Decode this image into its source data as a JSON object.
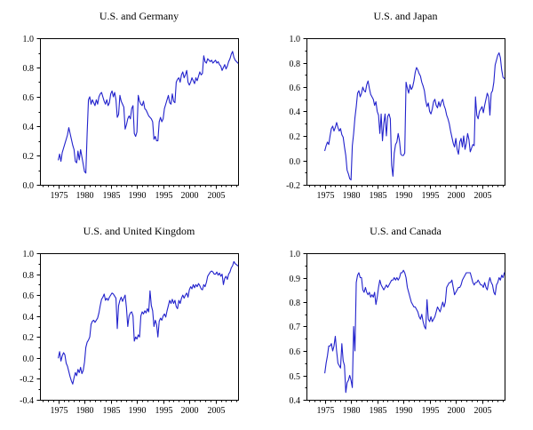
{
  "colors": {
    "line": "#2222cc",
    "frame": "#000000",
    "tick": "#000000",
    "background": "#ffffff",
    "text": "#000000"
  },
  "chart_data": [
    {
      "type": "line",
      "title": "U.S. and Germany",
      "xlabel": "",
      "ylabel": "",
      "legend": "none",
      "grid": "off",
      "ylim": [
        0.0,
        1.0
      ],
      "ytick_step": 0.2,
      "ytick_minor": 0.1,
      "xlim": [
        1971.5,
        2009.3
      ],
      "xticks_labeled": [
        1975,
        1980,
        1985,
        1990,
        1995,
        2000,
        2005
      ],
      "xtick_minor_step": 1,
      "x_start": 1975.0,
      "x_step": 0.25,
      "values": [
        0.17,
        0.21,
        0.16,
        0.22,
        0.25,
        0.28,
        0.31,
        0.34,
        0.39,
        0.35,
        0.31,
        0.27,
        0.24,
        0.16,
        0.15,
        0.23,
        0.17,
        0.24,
        0.19,
        0.14,
        0.09,
        0.08,
        0.35,
        0.58,
        0.6,
        0.55,
        0.58,
        0.56,
        0.54,
        0.58,
        0.55,
        0.6,
        0.62,
        0.63,
        0.6,
        0.57,
        0.55,
        0.58,
        0.54,
        0.56,
        0.62,
        0.64,
        0.6,
        0.63,
        0.58,
        0.46,
        0.48,
        0.61,
        0.57,
        0.55,
        0.53,
        0.38,
        0.41,
        0.45,
        0.47,
        0.45,
        0.52,
        0.54,
        0.35,
        0.33,
        0.36,
        0.61,
        0.57,
        0.55,
        0.54,
        0.57,
        0.52,
        0.51,
        0.49,
        0.47,
        0.46,
        0.45,
        0.43,
        0.31,
        0.33,
        0.3,
        0.3,
        0.43,
        0.46,
        0.43,
        0.45,
        0.52,
        0.55,
        0.58,
        0.61,
        0.56,
        0.55,
        0.62,
        0.57,
        0.56,
        0.7,
        0.72,
        0.73,
        0.7,
        0.75,
        0.77,
        0.73,
        0.75,
        0.78,
        0.7,
        0.68,
        0.7,
        0.73,
        0.71,
        0.69,
        0.73,
        0.71,
        0.74,
        0.77,
        0.75,
        0.76,
        0.88,
        0.84,
        0.83,
        0.86,
        0.85,
        0.84,
        0.85,
        0.83,
        0.84,
        0.85,
        0.83,
        0.84,
        0.82,
        0.81,
        0.78,
        0.8,
        0.82,
        0.79,
        0.81,
        0.84,
        0.86,
        0.89,
        0.91,
        0.87,
        0.85,
        0.84,
        0.83
      ]
    },
    {
      "type": "line",
      "title": "U.S. and Japan",
      "xlabel": "",
      "ylabel": "",
      "legend": "none",
      "grid": "off",
      "ylim": [
        -0.2,
        1.0
      ],
      "ytick_step": 0.2,
      "ytick_minor": 0.1,
      "xlim": [
        1971.5,
        2009.3
      ],
      "xticks_labeled": [
        1975,
        1980,
        1985,
        1990,
        1995,
        2000,
        2005
      ],
      "xtick_minor_step": 1,
      "x_start": 1975.0,
      "x_step": 0.25,
      "values": [
        0.08,
        0.12,
        0.15,
        0.13,
        0.2,
        0.26,
        0.28,
        0.24,
        0.27,
        0.31,
        0.27,
        0.24,
        0.26,
        0.21,
        0.19,
        0.11,
        0.04,
        -0.08,
        -0.11,
        -0.15,
        -0.16,
        0.12,
        0.22,
        0.35,
        0.44,
        0.55,
        0.57,
        0.52,
        0.55,
        0.6,
        0.57,
        0.56,
        0.62,
        0.65,
        0.59,
        0.54,
        0.52,
        0.5,
        0.45,
        0.48,
        0.4,
        0.37,
        0.22,
        0.38,
        0.16,
        0.3,
        0.38,
        0.2,
        0.36,
        0.38,
        0.34,
        -0.04,
        -0.13,
        0.06,
        0.13,
        0.15,
        0.22,
        0.16,
        0.05,
        0.04,
        0.04,
        0.06,
        0.64,
        0.59,
        0.55,
        0.62,
        0.58,
        0.6,
        0.65,
        0.72,
        0.76,
        0.74,
        0.71,
        0.69,
        0.64,
        0.61,
        0.57,
        0.49,
        0.44,
        0.47,
        0.4,
        0.38,
        0.42,
        0.48,
        0.5,
        0.45,
        0.43,
        0.48,
        0.44,
        0.48,
        0.5,
        0.45,
        0.42,
        0.37,
        0.34,
        0.3,
        0.24,
        0.19,
        0.14,
        0.11,
        0.18,
        0.09,
        0.05,
        0.15,
        0.18,
        0.11,
        0.2,
        0.09,
        0.14,
        0.22,
        0.17,
        0.07,
        0.1,
        0.13,
        0.12,
        0.52,
        0.37,
        0.34,
        0.4,
        0.42,
        0.44,
        0.39,
        0.45,
        0.5,
        0.55,
        0.52,
        0.37,
        0.55,
        0.57,
        0.64,
        0.78,
        0.82,
        0.86,
        0.88,
        0.84,
        0.74,
        0.68,
        0.67
      ]
    },
    {
      "type": "line",
      "title": "U.S. and United Kingdom",
      "xlabel": "",
      "ylabel": "",
      "legend": "none",
      "grid": "off",
      "ylim": [
        -0.4,
        1.0
      ],
      "ytick_step": 0.2,
      "ytick_minor": 0.1,
      "xlim": [
        1971.5,
        2009.3
      ],
      "xticks_labeled": [
        1975,
        1980,
        1985,
        1990,
        1995,
        2000,
        2005
      ],
      "xtick_minor_step": 1,
      "x_start": 1975.0,
      "x_step": 0.25,
      "values": [
        0.0,
        0.06,
        -0.03,
        0.02,
        0.05,
        0.03,
        -0.05,
        -0.08,
        -0.13,
        -0.18,
        -0.22,
        -0.25,
        -0.19,
        -0.14,
        -0.17,
        -0.11,
        -0.14,
        -0.09,
        -0.15,
        -0.12,
        -0.04,
        0.1,
        0.15,
        0.17,
        0.2,
        0.32,
        0.35,
        0.36,
        0.34,
        0.36,
        0.38,
        0.43,
        0.5,
        0.56,
        0.58,
        0.61,
        0.55,
        0.57,
        0.55,
        0.58,
        0.6,
        0.62,
        0.61,
        0.59,
        0.57,
        0.28,
        0.5,
        0.55,
        0.58,
        0.54,
        0.57,
        0.6,
        0.48,
        0.3,
        0.4,
        0.43,
        0.44,
        0.4,
        0.16,
        0.2,
        0.18,
        0.22,
        0.2,
        0.4,
        0.44,
        0.42,
        0.45,
        0.43,
        0.47,
        0.44,
        0.64,
        0.5,
        0.45,
        0.3,
        0.36,
        0.32,
        0.2,
        0.35,
        0.38,
        0.36,
        0.4,
        0.42,
        0.39,
        0.45,
        0.5,
        0.55,
        0.52,
        0.56,
        0.52,
        0.55,
        0.49,
        0.47,
        0.55,
        0.52,
        0.57,
        0.6,
        0.57,
        0.6,
        0.62,
        0.58,
        0.65,
        0.68,
        0.66,
        0.7,
        0.67,
        0.7,
        0.68,
        0.71,
        0.69,
        0.66,
        0.65,
        0.7,
        0.68,
        0.72,
        0.78,
        0.8,
        0.82,
        0.83,
        0.82,
        0.8,
        0.8,
        0.82,
        0.79,
        0.81,
        0.78,
        0.8,
        0.7,
        0.76,
        0.78,
        0.75,
        0.8,
        0.82,
        0.86,
        0.88,
        0.92,
        0.9,
        0.89,
        0.88
      ]
    },
    {
      "type": "line",
      "title": "U.S. and Canada",
      "xlabel": "",
      "ylabel": "",
      "legend": "none",
      "grid": "off",
      "ylim": [
        0.4,
        1.0
      ],
      "ytick_step": 0.1,
      "ytick_minor": 0.05,
      "xlim": [
        1971.5,
        2009.3
      ],
      "xticks_labeled": [
        1975,
        1980,
        1985,
        1990,
        1995,
        2000,
        2005
      ],
      "xtick_minor_step": 1,
      "x_start": 1975.0,
      "x_step": 0.25,
      "values": [
        0.51,
        0.55,
        0.58,
        0.62,
        0.62,
        0.63,
        0.6,
        0.62,
        0.66,
        0.6,
        0.55,
        0.54,
        0.53,
        0.63,
        0.56,
        0.54,
        0.43,
        0.47,
        0.48,
        0.5,
        0.48,
        0.45,
        0.7,
        0.6,
        0.88,
        0.91,
        0.92,
        0.9,
        0.9,
        0.85,
        0.84,
        0.86,
        0.84,
        0.83,
        0.84,
        0.82,
        0.83,
        0.82,
        0.84,
        0.79,
        0.82,
        0.86,
        0.89,
        0.87,
        0.86,
        0.85,
        0.86,
        0.87,
        0.86,
        0.87,
        0.88,
        0.89,
        0.89,
        0.9,
        0.89,
        0.9,
        0.89,
        0.9,
        0.92,
        0.92,
        0.93,
        0.92,
        0.9,
        0.86,
        0.84,
        0.82,
        0.8,
        0.79,
        0.78,
        0.78,
        0.77,
        0.76,
        0.74,
        0.73,
        0.75,
        0.72,
        0.7,
        0.69,
        0.81,
        0.73,
        0.72,
        0.74,
        0.72,
        0.73,
        0.74,
        0.76,
        0.78,
        0.77,
        0.76,
        0.78,
        0.8,
        0.78,
        0.8,
        0.86,
        0.87,
        0.88,
        0.88,
        0.89,
        0.86,
        0.83,
        0.84,
        0.85,
        0.86,
        0.86,
        0.87,
        0.89,
        0.9,
        0.91,
        0.92,
        0.92,
        0.92,
        0.92,
        0.9,
        0.88,
        0.87,
        0.88,
        0.88,
        0.89,
        0.88,
        0.87,
        0.87,
        0.86,
        0.88,
        0.86,
        0.85,
        0.88,
        0.9,
        0.88,
        0.87,
        0.84,
        0.83,
        0.87,
        0.88,
        0.9,
        0.89,
        0.91,
        0.9,
        0.92
      ]
    }
  ]
}
